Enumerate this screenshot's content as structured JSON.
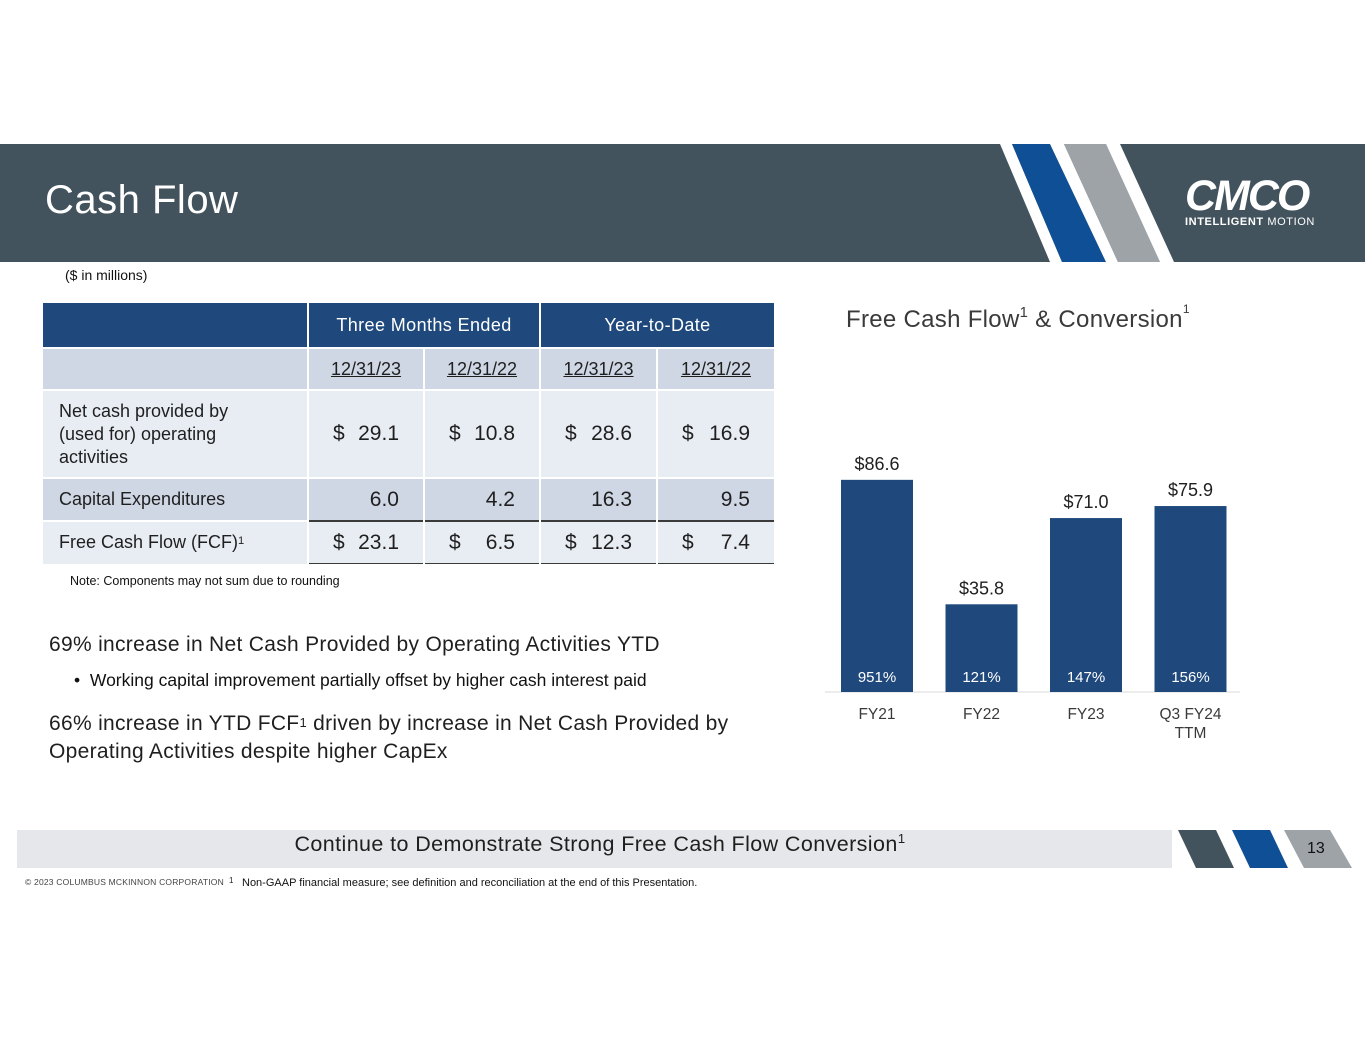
{
  "header": {
    "title": "Cash Flow"
  },
  "logo": {
    "wordmark": "CMCO",
    "tag_bold": "INTELLIGENT",
    "tag_light": "MOTION"
  },
  "units_note": "($ in millions)",
  "table": {
    "group_headers": [
      "Three Months Ended",
      "Year-to-Date"
    ],
    "dates": [
      "12/31/23",
      "12/31/22",
      "12/31/23",
      "12/31/22"
    ],
    "rows": [
      {
        "label": "Net cash provided by (used for) operating activities",
        "currency": [
          "$",
          "$",
          "$",
          "$"
        ],
        "values": [
          "29.1",
          "10.8",
          "28.6",
          "16.9"
        ]
      },
      {
        "label": "Capital Expenditures",
        "currency": [
          "",
          "",
          "",
          ""
        ],
        "values": [
          "6.0",
          "4.2",
          "16.3",
          "9.5"
        ]
      },
      {
        "label": "Free Cash Flow (FCF)",
        "label_sup": "1",
        "currency": [
          "$",
          "$",
          "$",
          "$"
        ],
        "values": [
          "23.1",
          "6.5",
          "12.3",
          "7.4"
        ]
      }
    ]
  },
  "rounding_note": "Note: Components may not sum due to rounding",
  "highlights": {
    "h1": "69% increase in Net Cash Provided by Operating Activities YTD",
    "bullet_glyph": "•",
    "bullet": "Working capital improvement partially offset by higher cash interest paid",
    "h2_a": "66% increase in YTD FCF",
    "h2_sup": "1",
    "h2_b": " driven by increase in Net Cash Provided by Operating Activities despite higher CapEx"
  },
  "chart_title": {
    "a": "Free Cash Flow",
    "sup1": "1",
    "b": " & Conversion",
    "sup2": "1"
  },
  "chart_data": {
    "type": "bar",
    "title": "Free Cash Flow1 & Conversion1",
    "categories": [
      "FY21",
      "FY22",
      "FY23",
      "Q3 FY24 TTM"
    ],
    "category_lines": [
      [
        "FY21"
      ],
      [
        "FY22"
      ],
      [
        "FY23"
      ],
      [
        "Q3 FY24",
        "TTM"
      ]
    ],
    "values": [
      86.6,
      35.8,
      71.0,
      75.9
    ],
    "value_labels": [
      "$86.6",
      "$35.8",
      "$71.0",
      "$75.9"
    ],
    "conversion_labels": [
      "951%",
      "121%",
      "147%",
      "156%"
    ],
    "ylim": [
      0,
      100
    ],
    "xlabel": "",
    "ylabel": "",
    "bar_color": "#1f497d",
    "grid": false
  },
  "footer": {
    "tagline": "Continue to Demonstrate Strong Free Cash Flow Conversion",
    "tagline_sup": "1",
    "page_number": "13",
    "copyright": "© 2023 COLUMBUS MCKINNON CORPORATION",
    "footnote_mark": "1",
    "footnote": "Non-GAAP financial measure; see definition and reconciliation at the end of this Presentation."
  },
  "colors": {
    "header_band": "#43535d",
    "accent_blue": "#1f497d",
    "stripe_blue": "#0f4f95",
    "stripe_gray": "#9ea3a7"
  }
}
